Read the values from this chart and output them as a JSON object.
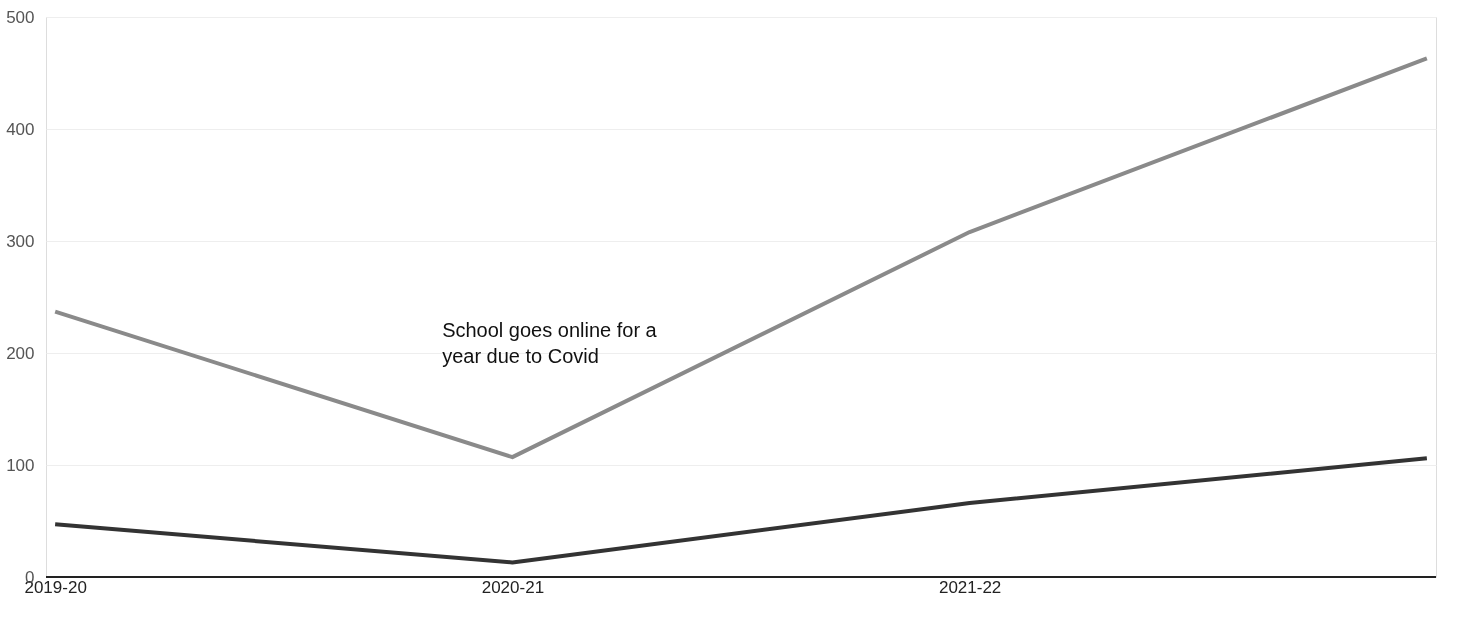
{
  "chart_data": {
    "type": "line",
    "categories": [
      "2019-20",
      "2020-21",
      "2021-22",
      null
    ],
    "series": [
      {
        "color": "#8a8a8a",
        "values": [
          237,
          107,
          308,
          463
        ]
      },
      {
        "color": "#333333",
        "values": [
          47,
          13,
          66,
          106
        ]
      }
    ],
    "ylim": [
      0,
      500
    ],
    "yticks": [
      0,
      100,
      200,
      300,
      400,
      500
    ],
    "grid": "y",
    "legend": false,
    "marker": "none",
    "line_style": "solid",
    "annotations": [
      "School goes online for a year due to Covid"
    ]
  }
}
